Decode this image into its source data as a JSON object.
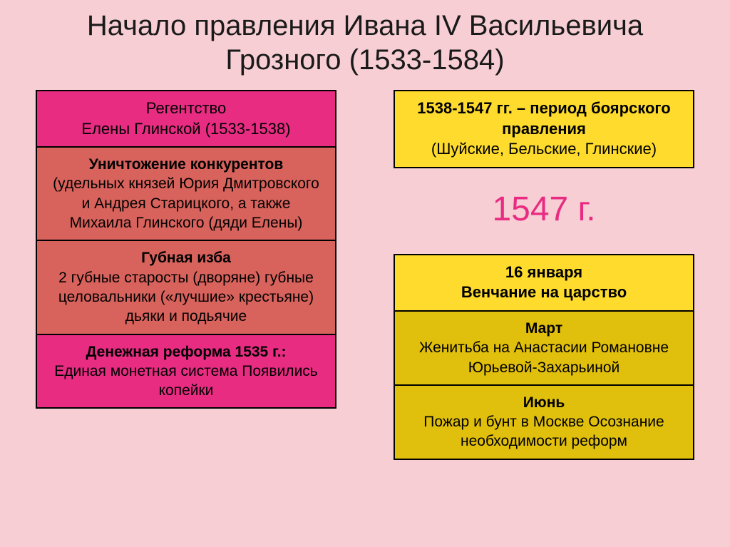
{
  "title": "Начало правления Ивана IV Васильевича Грозного (1533-1584)",
  "colors": {
    "background": "#f7ced4",
    "pink_header": "#e82c82",
    "red_sub": "#d8625c",
    "yellow_header": "#fedb2c",
    "yellow_sub": "#e0bf0d",
    "border": "#000000",
    "title_text": "#1a1a1a",
    "year_text": "#e82c82"
  },
  "left": {
    "header_line1": "Регентство",
    "header_line2": "Елены Глинской (1533-1538)",
    "box1_bold": "Уничтожение конкурентов",
    "box1_text": "(удельных князей Юрия Дмитровского и Андрея Старицкого, а также Михаила Глинского (дяди Елены)",
    "box2_bold": "Губная изба",
    "box2_text": "2 губные старосты (дворяне) губные целовальники («лучшие» крестьяне) дьяки и подьячие",
    "box3_bold": "Денежная реформа 1535 г.:",
    "box3_text": "Единая монетная система Появились копейки"
  },
  "right": {
    "top_bold": "1538-1547 гг. – период боярского правления",
    "top_text": "(Шуйские, Бельские, Глинские)",
    "big_year": "1547 г.",
    "ev1_bold": "16 января",
    "ev1_bold2": "Венчание на царство",
    "ev2_bold": "Март",
    "ev2_text": "Женитьба на Анастасии Романовне Юрьевой-Захарьиной",
    "ev3_bold": "Июнь",
    "ev3_text": "Пожар и бунт в Москве Осознание необходимости реформ"
  }
}
